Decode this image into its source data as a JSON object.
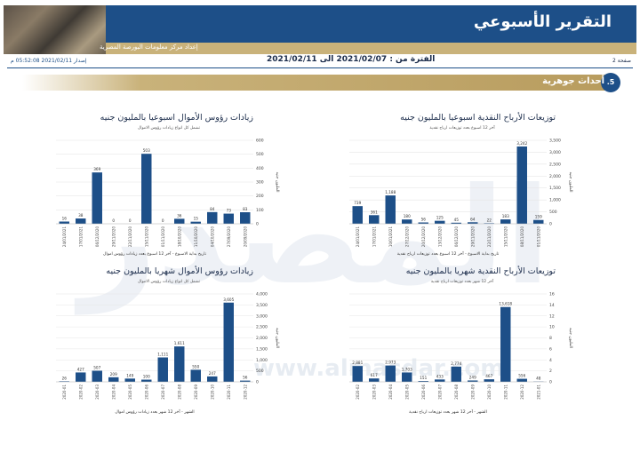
{
  "header": {
    "title": "التقرير الأسبوعي",
    "subtitle": "إعداد مركز معلومات البورصة المصرية"
  },
  "meta": {
    "period": "الفترة من : 2021/02/07 الى 2021/02/11",
    "page": "صفحة 2",
    "issued": "إصدار 2021/02/11 05:52:08 م"
  },
  "section": {
    "number": ".5",
    "title": "أحداث جوهرية"
  },
  "watermark": {
    "text": "المصدر",
    "url": "www.almasdar.com"
  },
  "colors": {
    "bar": "#1d4f88",
    "gold": "#c9b27a",
    "banner": "#1d4f88"
  },
  "chart_data": [
    {
      "id": "div-weekly",
      "type": "bar",
      "title": "توزيعات الأرباح النقدية اسبوعيا بالمليون جنيه",
      "subtitle": "آخر 12 اسبوع بعدد توزيعات ارباح نقدية",
      "xlabel": "تاريخ بداية الاسبوع - آخر 12 اسبوع بعدد توزيعات ارباح نقدية",
      "ylabel": "المليون جنيه",
      "ylim": [
        0,
        3500
      ],
      "yticks": [
        0,
        500,
        1000,
        1500,
        2000,
        2500,
        3000,
        3500
      ],
      "categories": [
        "24/01/2021",
        "17/01/2021",
        "10/01/2021",
        "27/12/2020",
        "20/12/2020",
        "13/12/2020",
        "06/12/2020",
        "29/11/2020",
        "22/11/2020",
        "15/11/2020",
        "08/11/2020",
        "01/11/2020"
      ],
      "values": [
        739,
        361,
        1188,
        180,
        56,
        125,
        45,
        64,
        22,
        183,
        3242,
        159
      ],
      "labels": [
        "739",
        "361",
        "1,188",
        "180",
        "56",
        "125",
        "45",
        "64",
        "22",
        "183",
        "3,242",
        "159"
      ]
    },
    {
      "id": "cap-weekly",
      "type": "bar",
      "title": "زيادات رؤوس الأموال اسبوعيا بالمليون جنيه",
      "subtitle": "تشمل كل انواع زيادات رؤوس الاموال",
      "xlabel": "تاريخ بداية الاسبوع - آخر 12 اسبوع بعدد زيادات رؤوس اموال",
      "ylabel": "المليون جنيه",
      "ylim": [
        0,
        600
      ],
      "yticks": [
        0,
        100,
        200,
        300,
        400,
        500,
        600
      ],
      "categories": [
        "24/01/2021",
        "17/01/2021",
        "06/12/2020",
        "29/11/2020",
        "22/11/2020",
        "15/11/2020",
        "01/11/2020",
        "18/10/2020",
        "11/10/2020",
        "04/10/2020",
        "27/09/2020",
        "20/09/2020"
      ],
      "values": [
        16,
        38,
        369,
        0,
        0,
        503,
        0,
        36,
        15,
        84,
        73,
        83
      ],
      "labels": [
        "16",
        "38",
        "369",
        "0",
        "0",
        "503",
        "0",
        "36",
        "15",
        "84",
        "73",
        "83"
      ]
    },
    {
      "id": "div-monthly",
      "type": "bar",
      "title": "توزيعات الأرباح النقدية شهريا بالمليون جنيه",
      "subtitle": "آخر 12 شهر بعدد توزيعات ارباح نقدية",
      "xlabel": "الشهر - آخر 12 شهر بعدد توزيعات ارباح نقدية",
      "ylabel": "المليون جنيه",
      "ylim": [
        0,
        16
      ],
      "yticks": [
        0,
        2,
        4,
        6,
        8,
        10,
        12,
        14,
        16
      ],
      "categories": [
        "2020-02",
        "2020-03",
        "2020-04",
        "2020-05",
        "2020-06",
        "2020-07",
        "2020-08",
        "2020-09",
        "2020-10",
        "2020-11",
        "2020-12",
        "2021-01"
      ],
      "values": [
        2.881,
        0.617,
        2.973,
        1.703,
        0.151,
        0.433,
        2.774,
        0.249,
        0.467,
        13.618,
        0.556,
        0.048
      ],
      "labels": [
        "2,881",
        "617",
        "2,973",
        "1,703",
        "151",
        "433",
        "2,774",
        "249",
        "467",
        "13,618",
        "556",
        "48"
      ]
    },
    {
      "id": "cap-monthly",
      "type": "bar",
      "title": "زيادات رؤوس الأموال شهريا بالمليون جنيه",
      "subtitle": "تشمل كل انواع زيادات رؤوس الاموال",
      "xlabel": "الشهر - آخر 12 شهر بعدد زيادات رؤوس اموال",
      "ylabel": "المليون جنيه",
      "ylim": [
        0,
        4000
      ],
      "yticks": [
        0,
        500,
        1000,
        1500,
        2000,
        2500,
        3000,
        3500,
        4000
      ],
      "categories": [
        "2020-01",
        "2020-02",
        "2020-03",
        "2020-04",
        "2020-05",
        "2020-06",
        "2020-07",
        "2020-08",
        "2020-09",
        "2020-10",
        "2020-11",
        "2020-12"
      ],
      "values": [
        26,
        427,
        507,
        209,
        149,
        100,
        1111,
        1611,
        550,
        247,
        3605,
        56
      ],
      "labels": [
        "26",
        "427",
        "507",
        "209",
        "149",
        "100",
        "1,111",
        "1,611",
        "550",
        "247",
        "3,605",
        "56"
      ]
    }
  ]
}
